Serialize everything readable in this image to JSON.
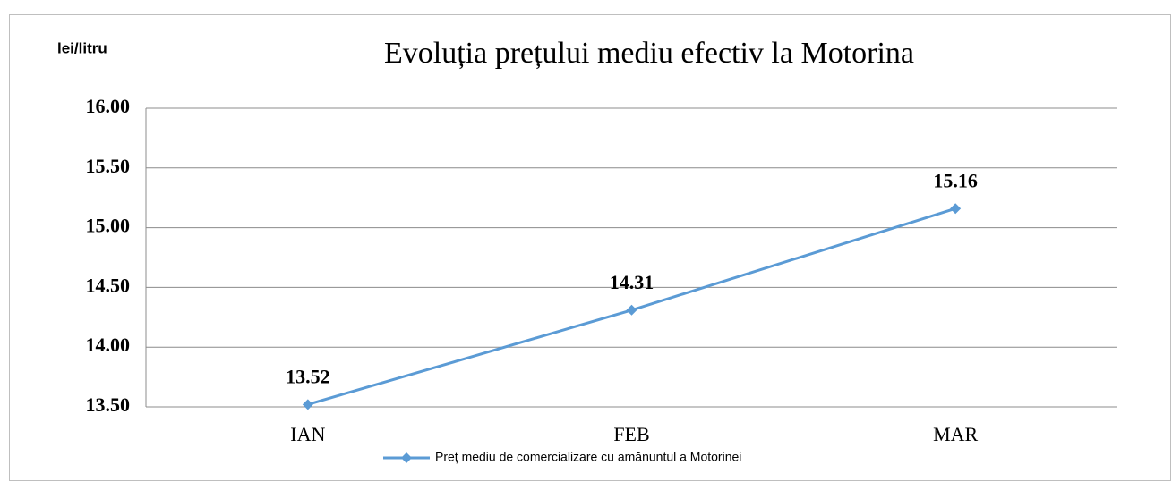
{
  "chart_data": {
    "type": "line",
    "title": "Evoluția prețului mediu efectiv la Motorina",
    "y_label": "lei/litru",
    "categories": [
      "IAN",
      "FEB",
      "MAR"
    ],
    "series": [
      {
        "name": "Preț mediu de comercializare cu amănuntul a Motorinei",
        "color": "#5b9bd5",
        "values": [
          13.52,
          14.31,
          15.16
        ]
      }
    ],
    "ylim": [
      13.5,
      16
    ],
    "yticks": [
      {
        "value": 13.5,
        "label": "13.50"
      },
      {
        "value": 14,
        "label": "14.00"
      },
      {
        "value": 14.5,
        "label": "14.50"
      },
      {
        "value": 15,
        "label": "15.00"
      },
      {
        "value": 15.5,
        "label": "15.50"
      },
      {
        "value": 16,
        "label": "16.00"
      }
    ],
    "grid": true,
    "legend": "bottom"
  }
}
